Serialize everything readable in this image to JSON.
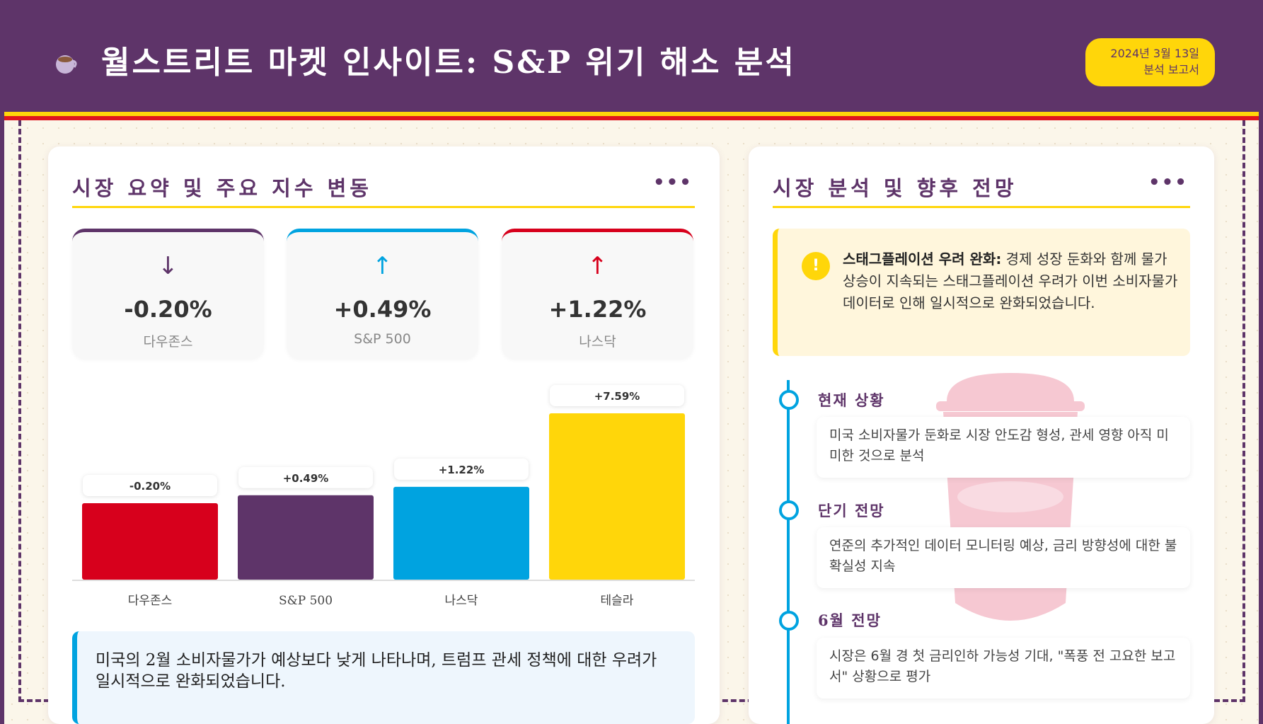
{
  "header": {
    "title": "월스트리트 마켓 인사이트: S&P 위기 해소 분석",
    "date_line1": "2024년 3월 13일",
    "date_line2": "분석 보고서",
    "icon": "coffee-cup-icon"
  },
  "colors": {
    "purple": "#5e3469",
    "yellow": "#ffd60a",
    "red": "#d7001c",
    "blue": "#00a3e0"
  },
  "left_card": {
    "title": "시장 요약 및 주요 지수 변동",
    "menu": "•••",
    "stats": [
      {
        "arrow": "↓",
        "value": "-0.20%",
        "label": "다우존스",
        "color": "#5e3469"
      },
      {
        "arrow": "↑",
        "value": "+0.49%",
        "label": "S&P 500",
        "color": "#00a3e0"
      },
      {
        "arrow": "↑",
        "value": "+1.22%",
        "label": "나스닥",
        "color": "#d7001c"
      }
    ],
    "note": "미국의 2월 소비자물가가 예상보다 낮게 나타나며, 트럼프 관세 정책에 대한 우려가 일시적으로 완화되었습니다."
  },
  "chart_data": {
    "type": "bar",
    "categories": [
      "다우존스",
      "S&P 500",
      "나스닥",
      "테슬라"
    ],
    "values": [
      -0.2,
      0.49,
      1.22,
      7.59
    ],
    "labels": [
      "-0.20%",
      "+0.49%",
      "+1.22%",
      "+7.59%"
    ],
    "colors": [
      "#d7001c",
      "#5e3469",
      "#00a3e0",
      "#ffd60a"
    ],
    "title": "",
    "xlabel": "",
    "ylabel": ""
  },
  "right_card": {
    "title": "시장 분석 및 향후 전망",
    "menu": "•••",
    "alert": {
      "icon": "exclamation-icon",
      "bold": "스태그플레이션 우려 완화:",
      "text": " 경제 성장 둔화와 함께 물가 상승이 지속되는 스태그플레이션 우려가 이번 소비자물가 데이터로 인해 일시적으로 완화되었습니다."
    },
    "timeline": [
      {
        "title": "현재 상황",
        "text": "미국 소비자물가 둔화로 시장 안도감 형성, 관세 영향 아직 미미한 것으로 분석"
      },
      {
        "title": "단기 전망",
        "text": "연준의 추가적인 데이터 모니터링 예상, 금리 방향성에 대한 불확실성 지속"
      },
      {
        "title": "6월 전망",
        "text": "시장은 6월 경 첫 금리인하 가능성 기대, \"폭풍 전 고요한 보고서\" 상황으로 평가"
      }
    ]
  }
}
